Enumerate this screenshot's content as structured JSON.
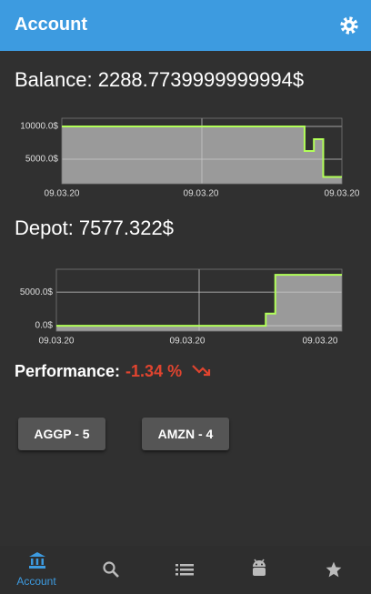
{
  "app_bar": {
    "title": "Account"
  },
  "balance": {
    "text": "Balance: 2288.7739999999994$"
  },
  "charts": [
    {
      "type": "step-line",
      "color": "#b2ff59",
      "ylim": [
        1250,
        11250
      ],
      "yticks": [
        {
          "value": 10000,
          "label": "10000.0$"
        },
        {
          "value": 5000,
          "label": "5000.0$"
        }
      ],
      "xticks": [
        "09.03.20",
        "09.03.20",
        "09.03.20"
      ],
      "values": [
        10000,
        10000,
        10000,
        10000,
        10000,
        10000,
        10000,
        10000,
        10000,
        10000,
        10000,
        10000,
        10000,
        10000,
        10000,
        10000,
        10000,
        10000,
        10000,
        10000,
        10000,
        10000,
        10000,
        10000,
        10000,
        10000,
        6250,
        8050,
        2290,
        2290
      ]
    },
    {
      "type": "step-line",
      "color": "#b2ff59",
      "ylim": [
        -800,
        8400
      ],
      "yticks": [
        {
          "value": 5000,
          "label": "5000.0$"
        },
        {
          "value": 0,
          "label": "0.0$"
        }
      ],
      "xticks": [
        "09.03.20",
        "09.03.20",
        "09.03.20"
      ],
      "values": [
        0,
        0,
        0,
        0,
        0,
        0,
        0,
        0,
        0,
        0,
        0,
        0,
        0,
        0,
        0,
        0,
        0,
        0,
        0,
        0,
        0,
        0,
        1800,
        7577,
        7577,
        7577,
        7577,
        7577,
        7577,
        7577
      ]
    }
  ],
  "depot": {
    "text": "Depot: 7577.322$"
  },
  "performance": {
    "label": "Performance:",
    "value": "-1.34 %"
  },
  "holdings": [
    "AGGP - 5",
    "AMZN - 4"
  ],
  "nav": {
    "active_label": "Account"
  }
}
